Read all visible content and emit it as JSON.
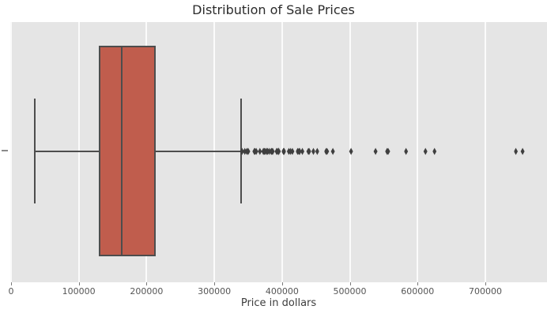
{
  "chart_data": {
    "type": "boxplot",
    "orientation": "horizontal",
    "title": "Distribution of Sale Prices",
    "xlabel": "Price in dollars",
    "ylabel": "",
    "series_name": "Sale Price",
    "xlim": [
      -1100,
      791000
    ],
    "xticks": [
      0,
      100000,
      200000,
      300000,
      400000,
      500000,
      600000,
      700000
    ],
    "xtick_labels": [
      "0",
      "100000",
      "200000",
      "300000",
      "400000",
      "500000",
      "600000",
      "700000"
    ],
    "grid": "vertical white gridlines on",
    "legend": "none",
    "stats": {
      "whisker_low": 34900,
      "q1": 129975,
      "median": 163000,
      "q3": 214000,
      "whisker_high": 340000
    },
    "outliers": [
      341000,
      345000,
      348000,
      350000,
      350000,
      359100,
      360000,
      361919,
      367294,
      372402,
      372500,
      374000,
      375000,
      377426,
      377500,
      378500,
      381000,
      383970,
      385000,
      386250,
      392000,
      392500,
      394432,
      394617,
      395000,
      395192,
      402000,
      402861,
      403000,
      410000,
      412500,
      415298,
      423000,
      424870,
      426000,
      430000,
      438780,
      440000,
      446261,
      451950,
      465000,
      466500,
      475000,
      501837,
      538000,
      555000,
      556581,
      582933,
      611657,
      625000,
      745000,
      755000
    ],
    "colors": {
      "box_fill": "#c05d4d",
      "box_edge": "#4d4d4d",
      "whisker": "#4d4d4d",
      "outlier": "#3f3f3f",
      "plot_background": "#e5e5e5",
      "gridline": "#fbfbfb",
      "title_text": "#2b2b2b",
      "tick_text": "#555555"
    }
  }
}
